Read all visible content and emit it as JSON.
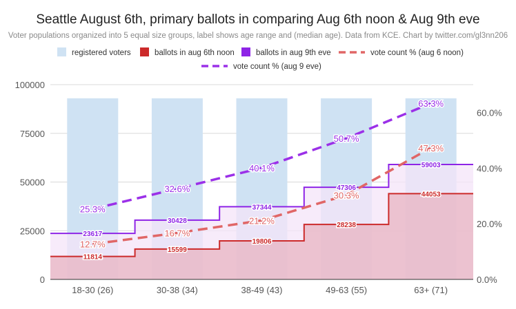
{
  "chart_data": {
    "type": "bar",
    "title": "Seattle August 6th, primary ballots in comparing Aug 6th noon & Aug 9th eve",
    "subtitle": "Voter populations organized into 5 equal size groups, label shows age range and (median age). Data from KCE. Chart by twitter.com/gl3nn206",
    "categories": [
      "18-30 (26)",
      "30-38 (34)",
      "38-49 (43)",
      "49-63 (55)",
      "63+ (71)"
    ],
    "legend": {
      "placement": "top",
      "items": [
        "registered voters",
        "ballots in aug 6th noon",
        "ballots in aug 9th eve",
        "vote count % (aug 6 noon)",
        "vote count % (aug 9 eve)"
      ]
    },
    "left_axis": {
      "ylim": [
        0,
        100000
      ],
      "ticks": [
        0,
        25000,
        50000,
        75000,
        100000
      ],
      "tick_labels": [
        "0",
        "25000",
        "50000",
        "75000",
        "100000"
      ]
    },
    "right_axis": {
      "ylim": [
        0,
        0.7
      ],
      "ticks": [
        0,
        0.2,
        0.4,
        0.6
      ],
      "tick_labels": [
        "0.0%",
        "20.0%",
        "40.0%",
        "60.0%"
      ]
    },
    "grid": true,
    "series": [
      {
        "name": "registered voters",
        "type": "bar",
        "axis": "left",
        "color": "#cfe2f3",
        "values": [
          93000,
          93000,
          93000,
          93000,
          93000
        ]
      },
      {
        "name": "ballots in aug 6th noon",
        "type": "step-area",
        "axis": "left",
        "color": "#cc2a2a",
        "fill": "#e8b4c2",
        "values": [
          11814,
          15599,
          19806,
          28238,
          44053
        ],
        "labels": [
          "11814",
          "15599",
          "19806",
          "28238",
          "44053"
        ]
      },
      {
        "name": "ballots in aug 9th eve",
        "type": "step-area",
        "axis": "left",
        "color": "#8e24e6",
        "fill": "#f4e4f8",
        "values": [
          23617,
          30428,
          37344,
          47306,
          59003
        ],
        "labels": [
          "23617",
          "30428",
          "37344",
          "47306",
          "59003"
        ]
      },
      {
        "name": "vote count % (aug 6 noon)",
        "type": "line",
        "axis": "right",
        "dashed": true,
        "color": "#e06666",
        "values": [
          0.127,
          0.167,
          0.212,
          0.303,
          0.473
        ],
        "labels": [
          "12.7%",
          "16.7%",
          "21.2%",
          "30.3%",
          "47.3%"
        ]
      },
      {
        "name": "vote count % (aug 9 eve)",
        "type": "line",
        "axis": "right",
        "dashed": true,
        "color": "#9b30e8",
        "values": [
          0.253,
          0.326,
          0.401,
          0.507,
          0.633
        ],
        "labels": [
          "25.3%",
          "32.6%",
          "40.1%",
          "50.7%",
          "63.3%"
        ]
      }
    ]
  }
}
